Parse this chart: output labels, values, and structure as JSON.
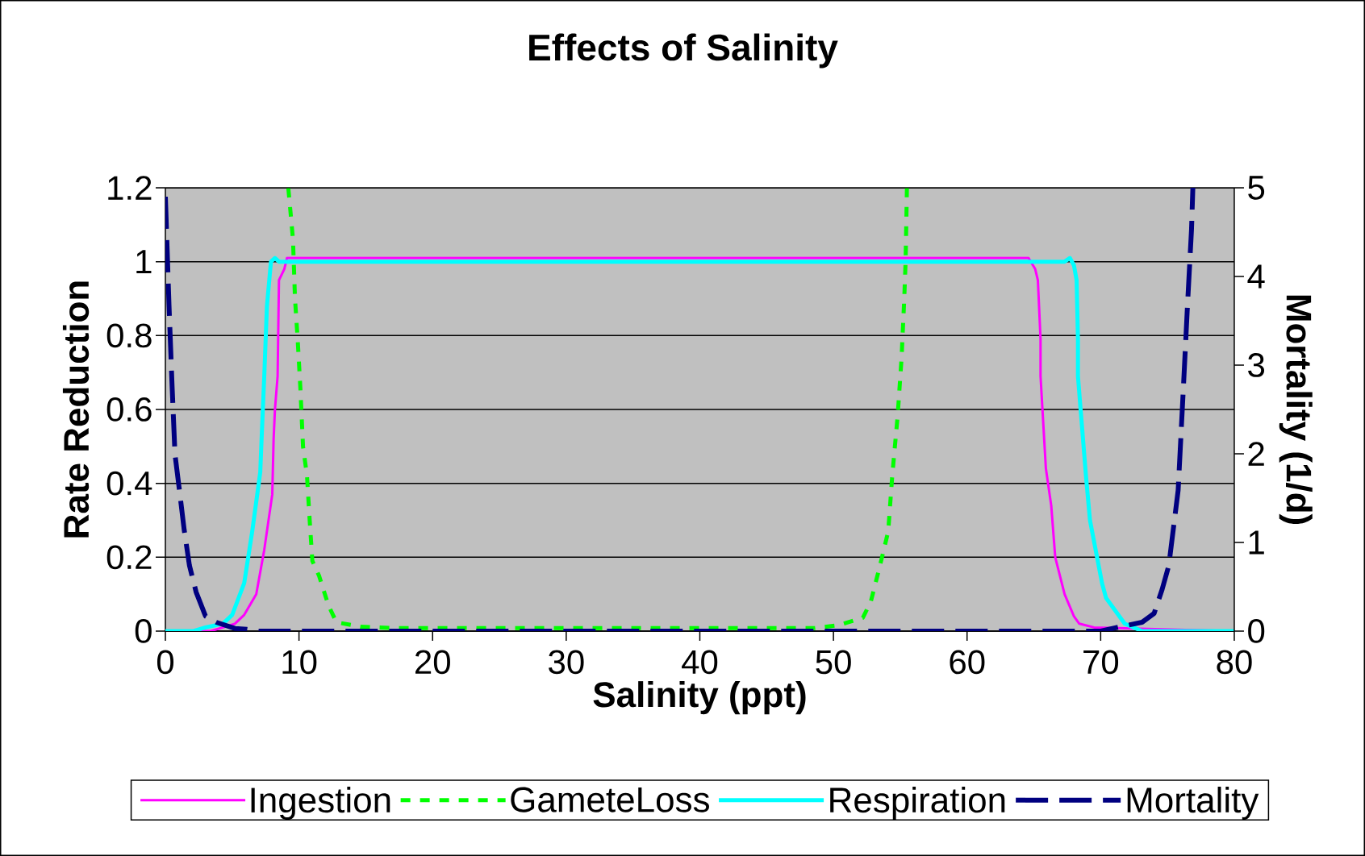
{
  "chart_data": {
    "type": "line",
    "title": "Effects of Salinity",
    "xlabel": "Salinity (ppt)",
    "ylabel": "Rate Reduction",
    "y2label": "Mortality (1/d)",
    "xlim": [
      0,
      80
    ],
    "xticks": [
      0,
      10,
      20,
      30,
      40,
      50,
      60,
      70,
      80
    ],
    "ylim": [
      0,
      1.2
    ],
    "yticks": [
      0,
      0.2,
      0.4,
      0.6,
      0.8,
      1,
      1.2
    ],
    "y2lim": [
      0,
      5
    ],
    "y2ticks": [
      0,
      1,
      2,
      3,
      4,
      5
    ],
    "grid": "y",
    "legend": "bottom",
    "series": [
      {
        "name": "Ingestion",
        "color": "#ff00ff",
        "line_style": "solid",
        "x": [
          0,
          3.4,
          5.2,
          5.9,
          6.8,
          7.4,
          8.0,
          8.1,
          8.2,
          8.4,
          8.5,
          8.9,
          9.1,
          64.6,
          65.1,
          65.3,
          65.5,
          65.5,
          65.9,
          66.3,
          66.6,
          67.3,
          68.0,
          68.4,
          69.5,
          80
        ],
        "values": [
          0,
          0,
          0.02,
          0.044,
          0.1,
          0.22,
          0.37,
          0.52,
          0.6,
          0.69,
          0.95,
          0.98,
          1.01,
          1.01,
          0.98,
          0.95,
          0.79,
          0.69,
          0.44,
          0.34,
          0.2,
          0.1,
          0.04,
          0.02,
          0.01,
          0
        ]
      },
      {
        "name": "GameteLoss",
        "color": "#00ff00",
        "line_style": "dotted",
        "x": [
          9.2,
          9.55,
          9.7,
          9.9,
          10.1,
          10.3,
          10.6,
          10.8,
          11.0,
          11.5,
          12.2,
          12.8,
          14.6,
          17.3,
          48.6,
          50.4,
          52.2,
          52.8,
          53.5,
          54.1,
          54.4,
          54.8,
          55.1,
          55.3,
          55.4,
          55.5
        ],
        "values": [
          1.2,
          1.06,
          0.9,
          0.79,
          0.66,
          0.5,
          0.42,
          0.3,
          0.19,
          0.15,
          0.07,
          0.024,
          0.012,
          0.008,
          0.008,
          0.016,
          0.036,
          0.08,
          0.18,
          0.27,
          0.42,
          0.58,
          0.74,
          0.9,
          1.0,
          1.2
        ]
      },
      {
        "name": "Respiration",
        "color": "#00ffff",
        "line_style": "solid",
        "x": [
          0,
          2.1,
          3.0,
          4.3,
          5.0,
          5.9,
          6.5,
          7.1,
          7.2,
          7.4,
          7.6,
          7.8,
          7.9,
          8.2,
          8.5,
          67.3,
          67.7,
          68.0,
          68.2,
          68.3,
          68.3,
          68.9,
          69.2,
          70.1,
          70.4,
          71.8,
          73.1,
          80
        ],
        "values": [
          0,
          0,
          0.01,
          0.02,
          0.044,
          0.13,
          0.27,
          0.43,
          0.52,
          0.69,
          0.88,
          0.96,
          1.0,
          1.01,
          1.0,
          1.0,
          1.01,
          0.99,
          0.95,
          0.79,
          0.69,
          0.42,
          0.3,
          0.13,
          0.09,
          0.02,
          0,
          0
        ]
      },
      {
        "name": "Mortality",
        "color": "#000080",
        "line_style": "dashed",
        "axis": "y2",
        "x": [
          0,
          0.27,
          0.5,
          0.72,
          1.05,
          1.4,
          1.8,
          2.3,
          3.0,
          3.8,
          5.2,
          6.1,
          7.0,
          70.0,
          71.5,
          73.1,
          74.0,
          74.6,
          75.1,
          75.8,
          76.2,
          76.5,
          76.8,
          76.9
        ],
        "values": [
          4.9,
          3.68,
          2.77,
          1.99,
          1.59,
          1.15,
          0.74,
          0.44,
          0.17,
          0.1,
          0.03,
          0.02,
          0,
          0,
          0.05,
          0.1,
          0.2,
          0.47,
          0.74,
          1.59,
          2.77,
          3.68,
          4.53,
          5.0
        ]
      }
    ]
  }
}
